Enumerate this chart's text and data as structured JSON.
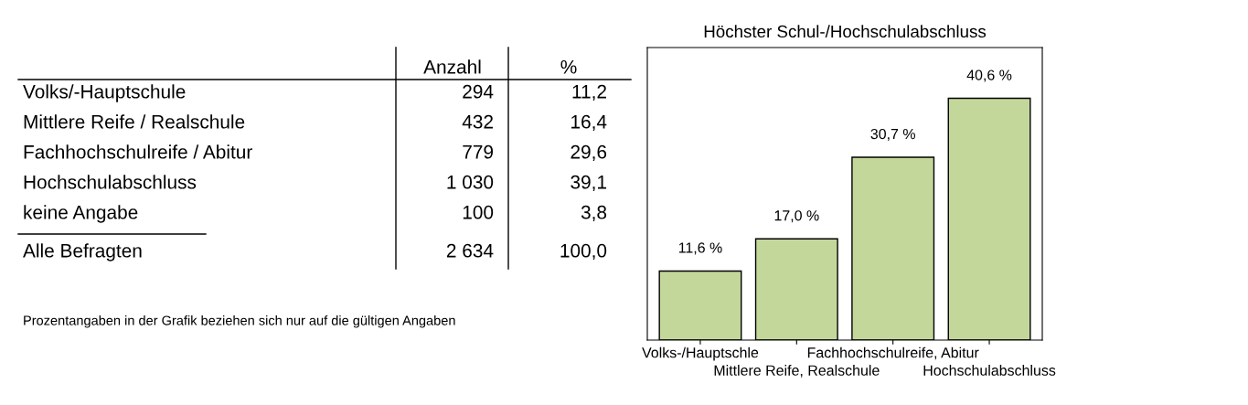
{
  "chart_data": [
    {
      "type": "other",
      "categories": [
        "Volks/-Hauptschule",
        "Mittlere Reife / Realschule",
        "Fachhochschulreife / Abitur",
        "Hochschulabschluss",
        "keine Angabe",
        "Alle Befragten"
      ],
      "series": [
        {
          "name": "Anzahl",
          "values": [
            294,
            432,
            779,
            1030,
            100,
            2634
          ],
          "value_labels": [
            "294",
            "432",
            "779",
            "1 030",
            "100",
            "2 634"
          ]
        },
        {
          "name": "%",
          "values": [
            11.2,
            16.4,
            29.6,
            39.1,
            3.8,
            100.0
          ],
          "value_labels": [
            "11,2",
            "16,4",
            "29,6",
            "39,1",
            "3,8",
            "100,0"
          ]
        }
      ],
      "annotations": [
        "Prozentangaben in der Grafik beziehen sich nur auf die gültigen Angaben"
      ]
    },
    {
      "type": "bar",
      "title": "Höchster Schul-/Hochschulabschluss",
      "categories": [
        "Volks-/Hauptschle",
        "Mittlere Reife, Realschule",
        "Fachhochschulreife, Abitur",
        "Hochschulabschluss"
      ],
      "values": [
        11.6,
        17.0,
        30.7,
        40.6
      ],
      "value_labels": [
        "11,6 %",
        "17,0 %",
        "30,7 %",
        "40,6 %"
      ],
      "color": "#c4d79b",
      "grid": false
    }
  ]
}
